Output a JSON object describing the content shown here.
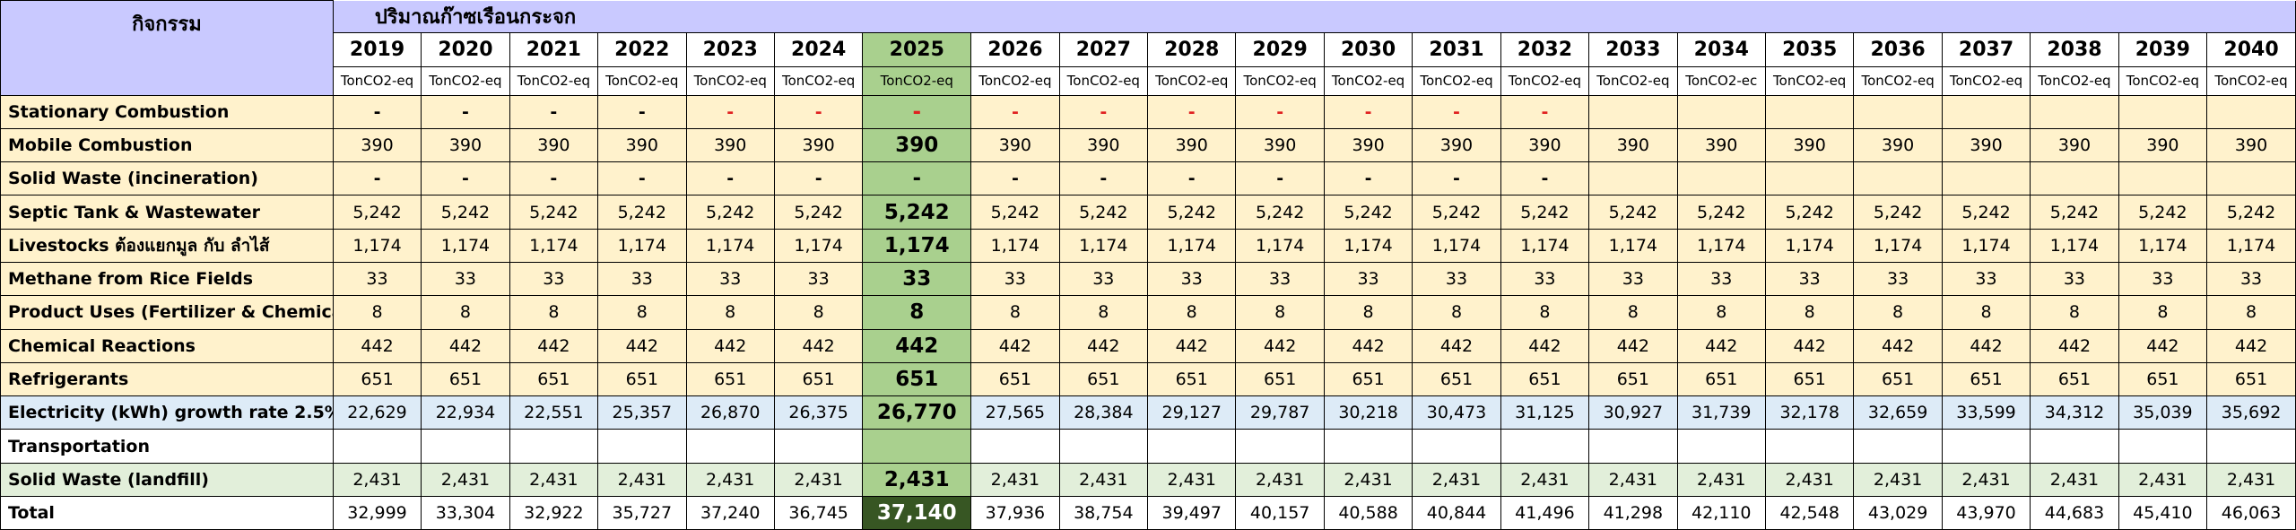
{
  "header": {
    "activity": "กิจกรรม",
    "title": "ปริมาณก๊าซเรือนกระจก",
    "years": [
      "2019",
      "2020",
      "2021",
      "2022",
      "2023",
      "2024",
      "2025",
      "2026",
      "2027",
      "2028",
      "2029",
      "2030",
      "2031",
      "2032",
      "2033",
      "2034",
      "2035",
      "2036",
      "2037",
      "2038",
      "2039",
      "2040"
    ],
    "units": [
      "TonCO2-eq",
      "TonCO2-eq",
      "TonCO2-eq",
      "TonCO2-eq",
      "TonCO2-eq",
      "TonCO2-eq",
      "TonCO2-eq",
      "TonCO2-eq",
      "TonCO2-eq",
      "TonCO2-eq",
      "TonCO2-eq",
      "TonCO2-eq",
      "TonCO2-eq",
      "TonCO2-eq",
      "TonCO2-eq",
      "TonCO2-ec",
      "TonCO2-eq",
      "TonCO2-eq",
      "TonCO2-eq",
      "TonCO2-eq",
      "TonCO2-eq",
      "TonCO2-eq"
    ]
  },
  "rows": [
    {
      "label": "Stationary Combustion",
      "style": "yellow",
      "values": [
        "-",
        "-",
        "-",
        "-",
        "-",
        "-",
        "-",
        "-",
        "-",
        "-",
        "-",
        "-",
        "-",
        "-",
        "",
        "",
        "",
        "",
        "",
        "",
        "",
        ""
      ],
      "red_from": 4
    },
    {
      "label": "Mobile Combustion",
      "style": "yellow",
      "values": [
        "390",
        "390",
        "390",
        "390",
        "390",
        "390",
        "390",
        "390",
        "390",
        "390",
        "390",
        "390",
        "390",
        "390",
        "390",
        "390",
        "390",
        "390",
        "390",
        "390",
        "390",
        "390"
      ]
    },
    {
      "label": "Solid Waste (incineration)",
      "style": "yellow",
      "values": [
        "-",
        "-",
        "-",
        "-",
        "-",
        "-",
        "-",
        "-",
        "-",
        "-",
        "-",
        "-",
        "-",
        "-",
        "",
        "",
        "",
        "",
        "",
        "",
        "",
        ""
      ]
    },
    {
      "label": "Septic Tank & Wastewater",
      "style": "yellow",
      "values": [
        "5,242",
        "5,242",
        "5,242",
        "5,242",
        "5,242",
        "5,242",
        "5,242",
        "5,242",
        "5,242",
        "5,242",
        "5,242",
        "5,242",
        "5,242",
        "5,242",
        "5,242",
        "5,242",
        "5,242",
        "5,242",
        "5,242",
        "5,242",
        "5,242",
        "5,242"
      ]
    },
    {
      "label": "Livestocks ต้องแยกมูล กับ ลำไส้",
      "style": "yellow",
      "values": [
        "1,174",
        "1,174",
        "1,174",
        "1,174",
        "1,174",
        "1,174",
        "1,174",
        "1,174",
        "1,174",
        "1,174",
        "1,174",
        "1,174",
        "1,174",
        "1,174",
        "1,174",
        "1,174",
        "1,174",
        "1,174",
        "1,174",
        "1,174",
        "1,174",
        "1,174"
      ]
    },
    {
      "label": "Methane from Rice Fields",
      "style": "yellow",
      "values": [
        "33",
        "33",
        "33",
        "33",
        "33",
        "33",
        "33",
        "33",
        "33",
        "33",
        "33",
        "33",
        "33",
        "33",
        "33",
        "33",
        "33",
        "33",
        "33",
        "33",
        "33",
        "33"
      ]
    },
    {
      "label": "Product Uses (Fertilizer & Chemicals",
      "style": "yellow",
      "values": [
        "8",
        "8",
        "8",
        "8",
        "8",
        "8",
        "8",
        "8",
        "8",
        "8",
        "8",
        "8",
        "8",
        "8",
        "8",
        "8",
        "8",
        "8",
        "8",
        "8",
        "8",
        "8"
      ]
    },
    {
      "label": "Chemical Reactions",
      "style": "yellow",
      "values": [
        "442",
        "442",
        "442",
        "442",
        "442",
        "442",
        "442",
        "442",
        "442",
        "442",
        "442",
        "442",
        "442",
        "442",
        "442",
        "442",
        "442",
        "442",
        "442",
        "442",
        "442",
        "442"
      ]
    },
    {
      "label": "Refrigerants",
      "style": "yellow",
      "values": [
        "651",
        "651",
        "651",
        "651",
        "651",
        "651",
        "651",
        "651",
        "651",
        "651",
        "651",
        "651",
        "651",
        "651",
        "651",
        "651",
        "651",
        "651",
        "651",
        "651",
        "651",
        "651"
      ]
    },
    {
      "label": "Electricity (kWh) growth rate 2.5%",
      "style": "blue",
      "values": [
        "22,629",
        "22,934",
        "22,551",
        "25,357",
        "26,870",
        "26,375",
        "26,770",
        "27,565",
        "28,384",
        "29,127",
        "29,787",
        "30,218",
        "30,473",
        "31,125",
        "30,927",
        "31,739",
        "32,178",
        "32,659",
        "33,599",
        "34,312",
        "35,039",
        "35,692"
      ]
    },
    {
      "label": "Transportation",
      "style": "white",
      "values": [
        "",
        "",
        "",
        "",
        "",
        "",
        "",
        "",
        "",
        "",
        "",
        "",
        "",
        "",
        "",
        "",
        "",
        "",
        "",
        "",
        "",
        ""
      ]
    },
    {
      "label": "Solid Waste (landfill)",
      "style": "green",
      "values": [
        "2,431",
        "2,431",
        "2,431",
        "2,431",
        "2,431",
        "2,431",
        "2,431",
        "2,431",
        "2,431",
        "2,431",
        "2,431",
        "2,431",
        "2,431",
        "2,431",
        "2,431",
        "2,431",
        "2,431",
        "2,431",
        "2,431",
        "2,431",
        "2,431",
        "2,431"
      ]
    },
    {
      "label": "Total",
      "style": "total",
      "values": [
        "32,999",
        "33,304",
        "32,922",
        "35,727",
        "37,240",
        "36,745",
        "37,140",
        "37,936",
        "38,754",
        "39,497",
        "40,157",
        "40,588",
        "40,844",
        "41,496",
        "41,298",
        "42,110",
        "42,548",
        "43,029",
        "43,970",
        "44,683",
        "45,410",
        "46,063"
      ]
    }
  ]
}
